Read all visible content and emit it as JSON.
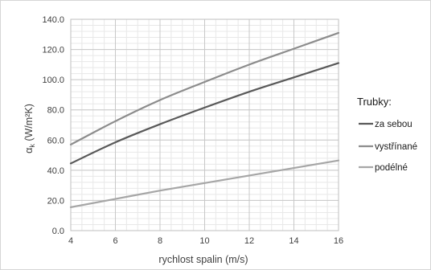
{
  "chart_data": {
    "type": "line",
    "xlabel": "rychlost spalin (m/s)",
    "ylabel": "α",
    "ylabel_sub": "k",
    "ylabel_unit": " (W/m²K)",
    "xlim": [
      4,
      16
    ],
    "ylim": [
      0,
      140
    ],
    "xticks": [
      4,
      6,
      8,
      10,
      12,
      14,
      16
    ],
    "yticks": [
      "0.0",
      "20.0",
      "40.0",
      "60.0",
      "80.0",
      "100.0",
      "120.0",
      "140.0"
    ],
    "grid": true,
    "legend_title": "Trubky:",
    "legend_position": "right",
    "x": [
      4,
      6,
      8,
      10,
      12,
      14,
      16
    ],
    "series": [
      {
        "name": "za sebou",
        "color": "#595959",
        "values": [
          44.5,
          58.5,
          70.5,
          81.5,
          92.0,
          101.5,
          111.0
        ]
      },
      {
        "name": "vystřínané",
        "color": "#8c8c8c",
        "values": [
          57.0,
          72.5,
          86.5,
          98.5,
          110.0,
          120.5,
          131.0
        ]
      },
      {
        "name": "podélné",
        "color": "#a6a6a6",
        "values": [
          15.5,
          21.0,
          26.5,
          31.5,
          36.5,
          41.5,
          46.5
        ]
      }
    ]
  }
}
